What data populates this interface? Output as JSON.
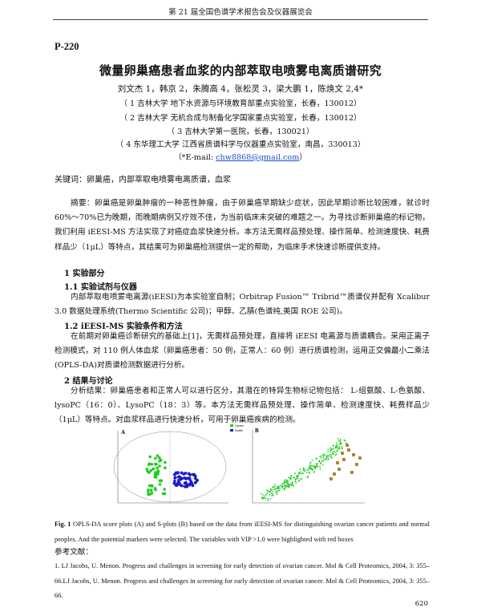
{
  "header": {
    "running_title": "第 21 届全国色谱学术报告会及仪器展览会"
  },
  "paper_id": "P-220",
  "title": "微量卵巢癌患者血浆的内部萃取电喷雾电离质谱研究",
  "authors": "刘文杰 1，韩京 2，朱腾高 4，张松灵 3，梁大鹏 1，陈焕文 2,4*",
  "affiliations": [
    "（ 1 吉林大学 地下水资源与环境教育部重点实验室，长春，130012）",
    "（ 2 吉林大学 无机合成与制备化学国家重点实验室，长春，130012）",
    "（ 3 吉林大学第一医院，长春，130021）",
    "（ 4 东华理工大学 江西省质谱科学与仪器重点实验室，南昌，330013）"
  ],
  "email_prefix": "（*E-mail: ",
  "email": "chw8868@gmail.com",
  "email_suffix": "）",
  "keywords": "关键词：卵巢癌，内部萃取电喷雾电离质谱，血浆",
  "abstract": "摘要：卵巢癌是卵巢肿瘤的一种恶性肿瘤，由于卵巢癌早期缺少症状，因此早期诊断比较困难，就诊时 60%～70%已为晚期，而晚期病例又疗效不佳，为当前临床未突破的难题之一。为寻找诊断卵巢癌的标记物，我们利用 iEESI-MS 方法实现了对癌症血浆快速分析。本方法无需样品预处理、操作简单、检测速度快、耗费样品少（1μL）等特点，其结果可为卵巢癌检测提供一定的帮助，为临床手术快速诊断提供支持。",
  "sections": {
    "s1": "1  实验部分",
    "s11": "1.1  实验试剂与仪器",
    "p11": "内部萃取电喷雾电离源(iEESI)为本实验室自制；Orbitrap Fusion™ Tribrid™质谱仪并配有 Xcalibur 3.0 数据处理系统(Thermo Scientific 公司)；甲醇、乙腈(色谱纯,美国 ROE 公司)。",
    "s12": "1.2 iEESI-MS 实验条件和方法",
    "p12": "在前期对卵巢癌诊断研究的基础上[1]，无需样品预处理，直接将 iEESI 电离源与质谱耦合。采用正离子检测模式，对 110 例人体血浆（卵巢癌患者：50 例，正常人：60 例）进行质谱检测，运用正交偏最小二乘法(OPLS-DA)对质谱检测数据进行分析。",
    "s2": "2  结果与讨论",
    "p2": "分析结果：卵巢癌患者和正常人可以进行区分，其潜在的特异生物标记物包括： L-组氨酸、L-色氨酸、lysoPC（16：0）、LysoPC（18：3）等。本方法无需样品预处理、操作简单、检测速度快、耗费样品少（1μL）等特点。对血浆样品进行快速分析，可用于卵巢癌疾病的检测。"
  },
  "figure": {
    "panel_a": "A",
    "panel_b": "B",
    "legend": [
      "Cancer",
      "Health"
    ],
    "colors": {
      "cancer": "#22cc22",
      "health": "#1a1acc",
      "splot": "#22cc22",
      "marker": "#b8860b"
    }
  },
  "caption_label": "Fig. 1",
  "caption": " OPLS-DA score plots (A) and S-plots (B) based on the data from iEESI-MS for distinguishing ovarian cancer patients and normal peoples. And the potential markers were selected. The variables with VIP >1.0 were highlighted with red boxes",
  "refs_heading": "参考文献：",
  "references": "1. LJ Jacobs, U. Menon. Progress and challenges in screening for early detection of ovarian cancer. Mol & Cell Proteomics, 2004, 3: 355–66.LJ Jacobs, U. Menon. Progress and challenges in screening for early detection of ovarian cancer. Mol & Cell Proteomics, 2004, 3: 355–66.",
  "page_number": "620"
}
